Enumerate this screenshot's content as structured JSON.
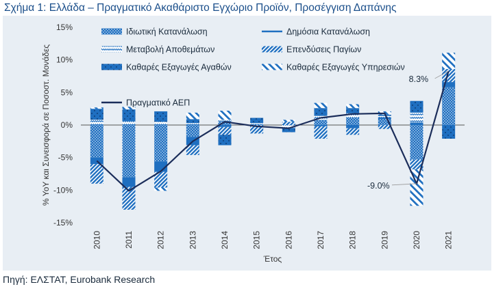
{
  "title": "Σχήμα 1: Ελλάδα – Πραγματικό Ακαθάριστο Εγχώριο Προϊόν, Προσέγγιση Δαπάνης",
  "source": "Πηγή: ΕΛΣΤΑΤ, Eurobank Research",
  "colors": {
    "primary": "#1f6fc0",
    "gdp_line": "#1b2d5a",
    "panel": "#e8eef4"
  },
  "chart_data": {
    "type": "bar",
    "stacked": true,
    "categories": [
      "2010",
      "2011",
      "2012",
      "2013",
      "2014",
      "2015",
      "2016",
      "2017",
      "2018",
      "2019",
      "2020",
      "2021"
    ],
    "xlabel": "Έτος",
    "ylabel": "% YoY και Συνεισφορά σε Ποσοστ. Μονάδες",
    "ylim": [
      -15,
      15
    ],
    "yticks": [
      15,
      10,
      5,
      0,
      -5,
      -10,
      -15
    ],
    "ytick_labels": [
      "15%",
      "10%",
      "5%",
      "0%",
      "-5%",
      "-10%",
      "-15%"
    ],
    "series": [
      {
        "name": "Ιδιωτική Κατανάλωση",
        "pattern": "dense-dots",
        "values": [
          -5.0,
          -8.0,
          -5.6,
          -1.8,
          0.5,
          0.1,
          0.0,
          0.8,
          1.1,
          0.9,
          -5.3,
          5.8
        ]
      },
      {
        "name": "Δημόσια Κατανάλωση",
        "pattern": "solid",
        "values": [
          -1.0,
          -1.5,
          -1.6,
          -1.3,
          -0.3,
          0.0,
          0.0,
          -0.2,
          -0.5,
          0.3,
          0.4,
          0.8
        ]
      },
      {
        "name": "Μεταβολή Αποθεμάτων",
        "pattern": "zigzag",
        "values": [
          0.8,
          0.6,
          0.5,
          0.3,
          0.3,
          0.2,
          -0.5,
          0.6,
          0.7,
          0.2,
          1.5,
          0.0
        ]
      },
      {
        "name": "Επενδύσεις Παγίων",
        "pattern": "dense-diagonal",
        "values": [
          -3.0,
          -3.5,
          -2.4,
          -1.5,
          -1.2,
          -1.3,
          0.5,
          -1.9,
          -1.0,
          -0.6,
          -1.5,
          2.0
        ]
      },
      {
        "name": "Καθαρές Εξαγωγές Αγαθών",
        "pattern": "big-dots",
        "values": [
          1.7,
          1.8,
          1.6,
          0.6,
          -1.6,
          0.8,
          -0.6,
          1.2,
          0.8,
          0.2,
          1.8,
          -2.1
        ]
      },
      {
        "name": "Καθαρές Εξαγωγές Υπηρεσιών",
        "pattern": "sparse-diagonal",
        "values": [
          0.2,
          0.4,
          -0.5,
          1.0,
          1.4,
          0.0,
          0.3,
          0.8,
          0.6,
          0.5,
          -5.6,
          2.5
        ]
      }
    ],
    "line": {
      "name": "Πραγματικό ΑΕΠ",
      "values": [
        -5.5,
        -10.1,
        -7.1,
        -2.5,
        0.5,
        -0.2,
        -0.5,
        1.1,
        1.7,
        1.8,
        -9.0,
        8.3
      ]
    },
    "annotations": [
      {
        "year": "2020",
        "text": "-9.0%"
      },
      {
        "year": "2021",
        "text": "8.3%"
      }
    ],
    "legend_position": "top-left"
  }
}
